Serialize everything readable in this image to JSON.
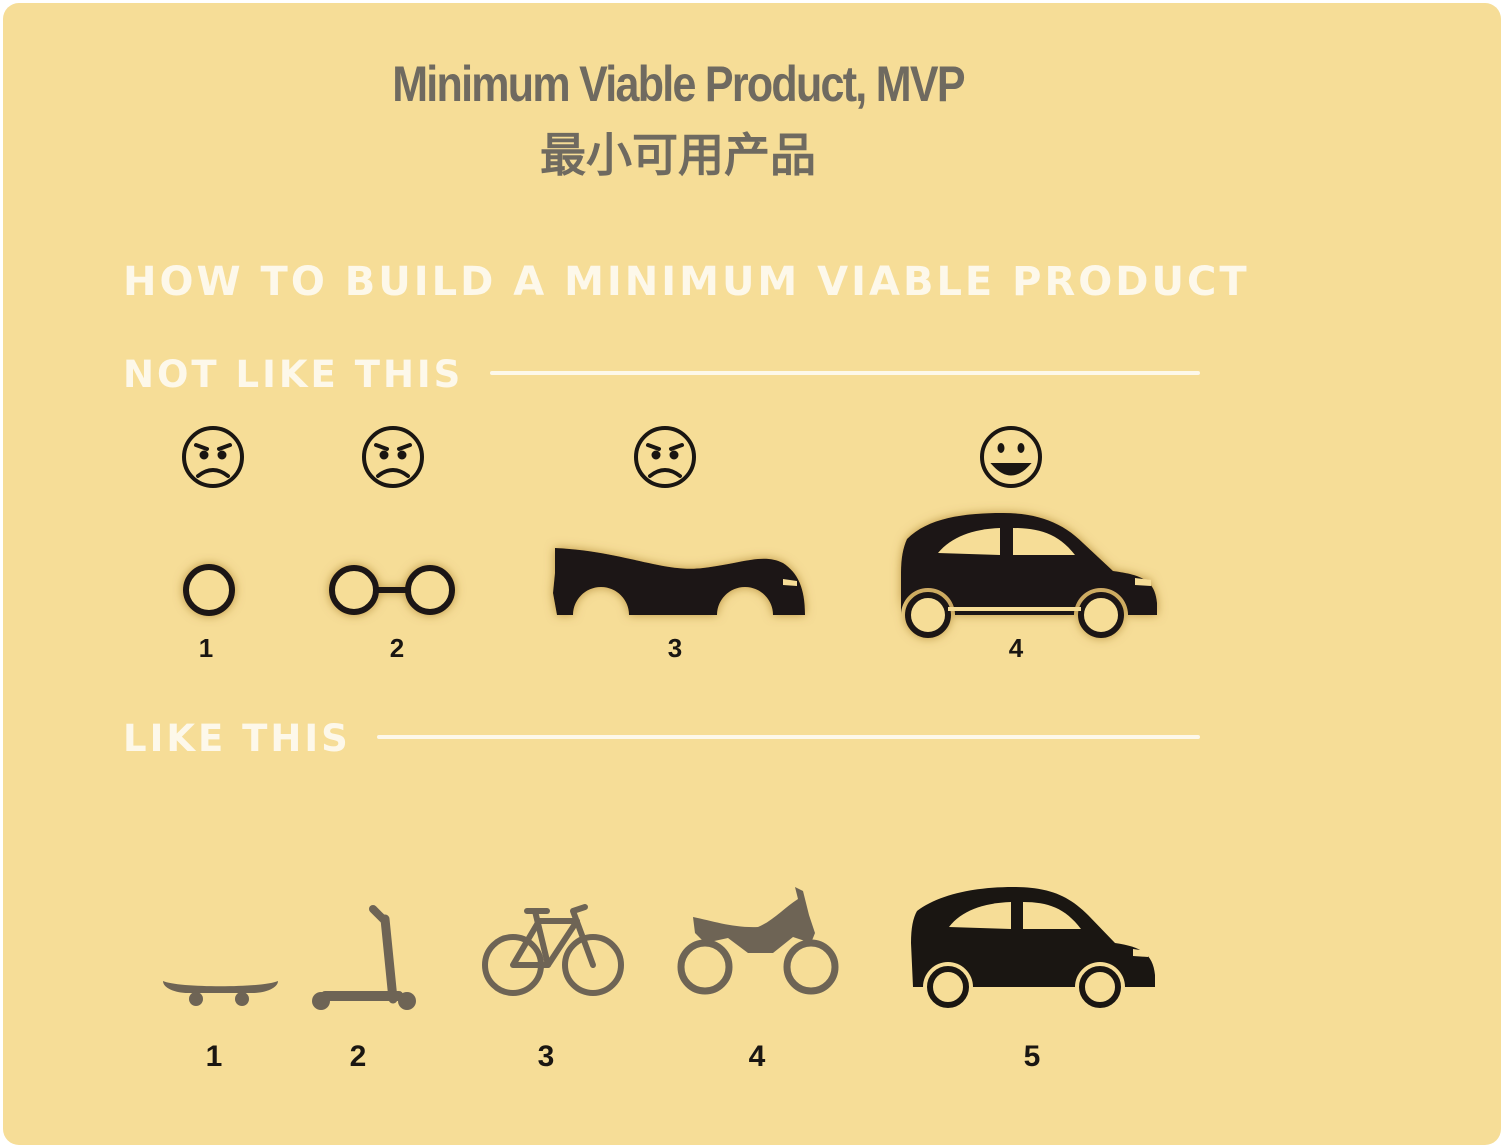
{
  "title_en": "Minimum Viable Product, MVP",
  "title_zh": "最小可用产品",
  "heading": "HOW TO BUILD A MINIMUM VIABLE PRODUCT",
  "not_like_this": {
    "label": "NOT LIKE THIS",
    "steps": [
      {
        "number": "1",
        "item": "wheel-icon",
        "mood": "sad-face-icon"
      },
      {
        "number": "2",
        "item": "two-wheels-icon",
        "mood": "sad-face-icon"
      },
      {
        "number": "3",
        "item": "car-body-icon",
        "mood": "sad-face-icon"
      },
      {
        "number": "4",
        "item": "car-icon",
        "mood": "happy-face-icon"
      }
    ]
  },
  "like_this": {
    "label": "LIKE THIS",
    "steps": [
      {
        "number": "1",
        "item": "skateboard-icon"
      },
      {
        "number": "2",
        "item": "scooter-icon"
      },
      {
        "number": "3",
        "item": "bicycle-icon"
      },
      {
        "number": "4",
        "item": "motorcycle-icon"
      },
      {
        "number": "5",
        "item": "car-icon"
      }
    ]
  },
  "colors": {
    "background": "#f6dd97",
    "title": "#6f6a60",
    "heading": "#fdf8ea",
    "icon_dark": "#1a1612",
    "icon_gray": "#6e6455"
  }
}
